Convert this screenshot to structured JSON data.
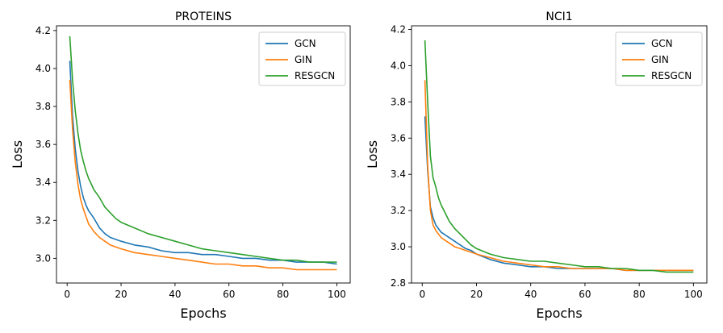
{
  "chart_data": [
    {
      "type": "line",
      "title": "PROTEINS",
      "xlabel": "Epochs",
      "ylabel": "Loss",
      "xlim": [
        -3.95,
        104.95
      ],
      "ylim": [
        2.87,
        4.225
      ],
      "xticks": [
        0,
        20,
        40,
        60,
        80,
        100
      ],
      "yticks": [
        3.0,
        3.2,
        3.4,
        3.6,
        3.8,
        4.0,
        4.2
      ],
      "grid": false,
      "legend_position": "top-right",
      "x": [
        1,
        2,
        3,
        4,
        5,
        6,
        7,
        8,
        9,
        10,
        12,
        14,
        16,
        18,
        20,
        25,
        30,
        35,
        40,
        45,
        50,
        55,
        60,
        65,
        70,
        75,
        80,
        85,
        90,
        95,
        100
      ],
      "series": [
        {
          "name": "GCN",
          "color": "#1f77b4",
          "values": [
            4.04,
            3.75,
            3.58,
            3.46,
            3.38,
            3.32,
            3.28,
            3.25,
            3.23,
            3.21,
            3.16,
            3.13,
            3.11,
            3.1,
            3.09,
            3.07,
            3.06,
            3.04,
            3.03,
            3.03,
            3.02,
            3.02,
            3.01,
            3.0,
            3.0,
            2.99,
            2.99,
            2.98,
            2.98,
            2.98,
            2.97
          ]
        },
        {
          "name": "GIN",
          "color": "#ff7f0e",
          "values": [
            3.94,
            3.68,
            3.51,
            3.39,
            3.31,
            3.26,
            3.22,
            3.18,
            3.16,
            3.14,
            3.11,
            3.09,
            3.07,
            3.06,
            3.05,
            3.03,
            3.02,
            3.01,
            3.0,
            2.99,
            2.98,
            2.97,
            2.97,
            2.96,
            2.96,
            2.95,
            2.95,
            2.94,
            2.94,
            2.94,
            2.94
          ]
        },
        {
          "name": "RESGCN",
          "color": "#2ca02c",
          "values": [
            4.17,
            3.94,
            3.78,
            3.66,
            3.57,
            3.51,
            3.46,
            3.42,
            3.39,
            3.36,
            3.32,
            3.27,
            3.24,
            3.21,
            3.19,
            3.16,
            3.13,
            3.11,
            3.09,
            3.07,
            3.05,
            3.04,
            3.03,
            3.02,
            3.01,
            3.0,
            2.99,
            2.99,
            2.98,
            2.98,
            2.98
          ]
        }
      ]
    },
    {
      "type": "line",
      "title": "NCI1",
      "xlabel": "Epochs",
      "ylabel": "Loss",
      "xlim": [
        -3.95,
        104.95
      ],
      "ylim": [
        2.8,
        4.22
      ],
      "xticks": [
        0,
        20,
        40,
        60,
        80,
        100
      ],
      "yticks": [
        2.8,
        3.0,
        3.2,
        3.4,
        3.6,
        3.8,
        4.0,
        4.2
      ],
      "grid": false,
      "legend_position": "top-right",
      "x": [
        1,
        2,
        3,
        4,
        5,
        6,
        7,
        8,
        9,
        10,
        12,
        14,
        16,
        18,
        20,
        25,
        30,
        35,
        40,
        45,
        50,
        55,
        60,
        65,
        70,
        75,
        80,
        85,
        90,
        95,
        100
      ],
      "series": [
        {
          "name": "GCN",
          "color": "#1f77b4",
          "values": [
            3.72,
            3.42,
            3.22,
            3.16,
            3.12,
            3.1,
            3.08,
            3.07,
            3.06,
            3.05,
            3.03,
            3.01,
            2.99,
            2.98,
            2.96,
            2.93,
            2.91,
            2.9,
            2.89,
            2.89,
            2.88,
            2.88,
            2.88,
            2.88,
            2.88,
            2.87,
            2.87,
            2.87,
            2.87,
            2.87,
            2.87
          ]
        },
        {
          "name": "GIN",
          "color": "#ff7f0e",
          "values": [
            3.92,
            3.45,
            3.2,
            3.12,
            3.09,
            3.07,
            3.05,
            3.04,
            3.03,
            3.02,
            3.0,
            2.99,
            2.98,
            2.97,
            2.96,
            2.94,
            2.92,
            2.91,
            2.9,
            2.89,
            2.89,
            2.88,
            2.88,
            2.88,
            2.88,
            2.87,
            2.87,
            2.87,
            2.87,
            2.87,
            2.87
          ]
        },
        {
          "name": "RESGCN",
          "color": "#2ca02c",
          "values": [
            4.14,
            3.8,
            3.5,
            3.38,
            3.33,
            3.27,
            3.23,
            3.2,
            3.17,
            3.14,
            3.1,
            3.07,
            3.04,
            3.01,
            2.99,
            2.96,
            2.94,
            2.93,
            2.92,
            2.92,
            2.91,
            2.9,
            2.89,
            2.89,
            2.88,
            2.88,
            2.87,
            2.87,
            2.86,
            2.86,
            2.86
          ]
        }
      ]
    }
  ]
}
